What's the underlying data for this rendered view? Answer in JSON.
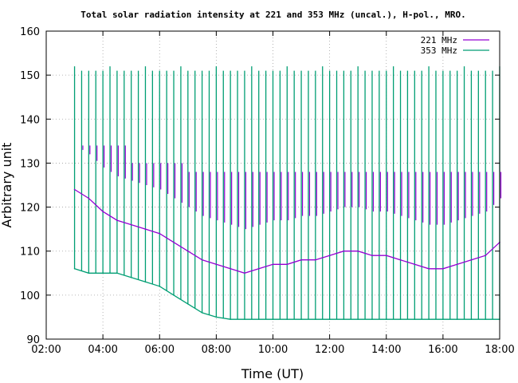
{
  "chart_data": {
    "type": "line",
    "title": "Total solar radiation intensity at 221 and 353 MHz (uncal.), H-pol., MRO.",
    "xlabel": "Time (UT)",
    "ylabel": "Arbitrary unit",
    "xlim": [
      "02:00",
      "18:00"
    ],
    "ylim": [
      90,
      160
    ],
    "x_ticks": [
      "02:00",
      "04:00",
      "06:00",
      "08:00",
      "10:00",
      "12:00",
      "14:00",
      "16:00",
      "18:00"
    ],
    "y_ticks": [
      90,
      100,
      110,
      120,
      130,
      140,
      150,
      160
    ],
    "grid": true,
    "legend": "top-right",
    "series": [
      {
        "name": "221 MHz",
        "color": "#9400d3",
        "x": [
          "03:00",
          "03:30",
          "04:00",
          "04:30",
          "05:00",
          "05:30",
          "06:00",
          "06:30",
          "07:00",
          "07:30",
          "08:00",
          "08:30",
          "09:00",
          "09:30",
          "10:00",
          "10:30",
          "11:00",
          "11:30",
          "12:00",
          "12:30",
          "13:00",
          "13:30",
          "14:00",
          "14:30",
          "15:00",
          "15:30",
          "16:00",
          "16:30",
          "17:00",
          "17:30",
          "18:00"
        ],
        "values": [
          124,
          122,
          119,
          117,
          116,
          115,
          114,
          112,
          110,
          108,
          107,
          106,
          105,
          106,
          107,
          107,
          108,
          108,
          109,
          110,
          110,
          109,
          109,
          108,
          107,
          106,
          106,
          107,
          108,
          109,
          112
        ]
      },
      {
        "name": "353 MHz",
        "color": "#009e73",
        "x": [
          "03:00",
          "03:30",
          "04:00",
          "04:30",
          "05:00",
          "05:30",
          "06:00",
          "06:30",
          "07:00",
          "07:30",
          "08:00",
          "08:30",
          "09:00",
          "09:30",
          "10:00",
          "10:30",
          "11:00",
          "11:30",
          "12:00",
          "12:30",
          "13:00",
          "13:30",
          "14:00",
          "14:30",
          "15:00",
          "15:30",
          "16:00",
          "16:30",
          "17:00",
          "17:30",
          "18:00"
        ],
        "values": [
          106,
          105,
          105,
          105,
          104,
          103,
          102,
          100,
          98,
          96,
          95,
          94.5,
          94.5,
          94.5,
          94.5,
          94.5,
          94.5,
          94.5,
          94.5,
          94.5,
          94.5,
          94.5,
          94.5,
          94.5,
          94.5,
          94.5,
          94.5,
          94.5,
          94.5,
          94.5,
          94.5
        ]
      }
    ]
  }
}
